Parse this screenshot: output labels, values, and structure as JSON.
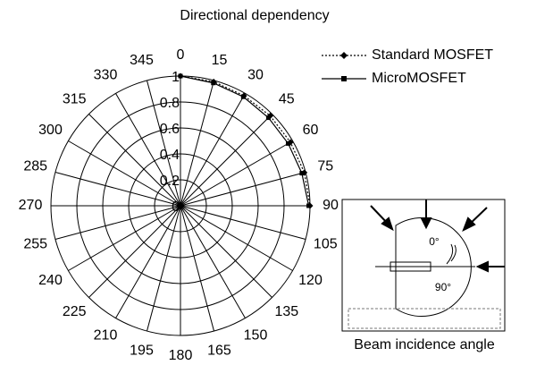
{
  "chart_data": {
    "type": "polar",
    "title": "Directional dependency",
    "x": [
      0,
      15,
      30,
      45,
      60,
      75,
      90
    ],
    "series": [
      {
        "name": "Standard MOSFET",
        "color": "#000000",
        "linestyle": "dotted",
        "marker": "diamond",
        "values": [
          1,
          0.99,
          0.98,
          0.98,
          0.98,
          0.99,
          1.0
        ]
      },
      {
        "name": "MicroMOSFET",
        "color": "#000000",
        "linestyle": "solid",
        "marker": "square",
        "values": [
          1,
          0.98,
          0.97,
          0.96,
          0.96,
          0.97,
          0.99
        ]
      }
    ],
    "rlim": [
      0,
      1
    ],
    "rticks": [
      0,
      0.2,
      0.4,
      0.6,
      0.8,
      1
    ],
    "xticks": [
      0,
      15,
      30,
      45,
      60,
      75,
      90,
      105,
      120,
      135,
      150,
      165,
      180,
      195,
      210,
      225,
      240,
      255,
      270,
      285,
      300,
      315,
      330,
      345
    ],
    "grid": true,
    "legend": "upper right",
    "inset": {
      "title": "Beam incidence angle",
      "labels": [
        "0°",
        "90°"
      ]
    }
  }
}
